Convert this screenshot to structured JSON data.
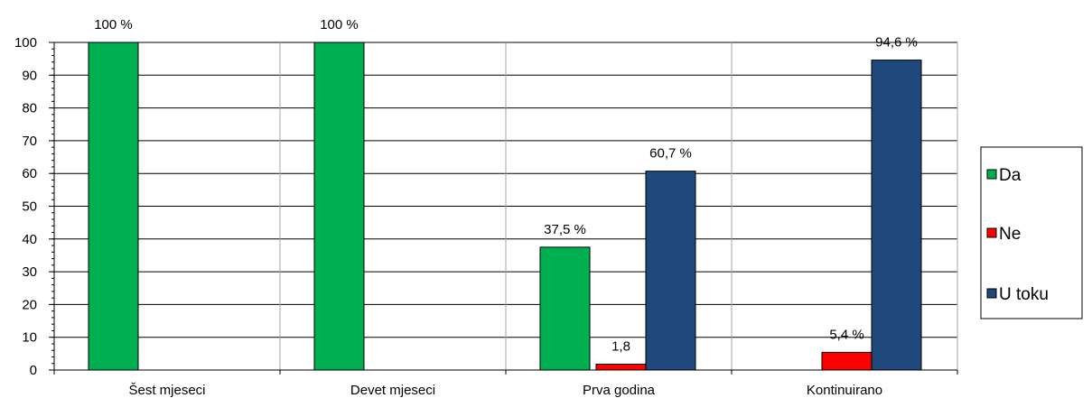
{
  "chart_data": {
    "type": "bar",
    "title": "",
    "xlabel": "",
    "ylabel": "",
    "ylim": [
      0,
      100
    ],
    "yticks": [
      0,
      10,
      20,
      30,
      40,
      50,
      60,
      70,
      80,
      90,
      100
    ],
    "grid": "horizontal and vertical",
    "legend_position": "right",
    "categories": [
      "Šest mjeseci",
      "Devet mjeseci",
      "Prva godina",
      "Kontinuirano"
    ],
    "series": [
      {
        "name": "Da",
        "color": "#00b050",
        "values": [
          100,
          100,
          37.5,
          null
        ],
        "labels": [
          "100 %",
          "100 %",
          "37,5 %",
          ""
        ]
      },
      {
        "name": "Ne",
        "color": "#ff0000",
        "values": [
          null,
          null,
          1.8,
          5.4
        ],
        "labels": [
          "",
          "",
          "1,8",
          "5,4 %"
        ]
      },
      {
        "name": "U toku",
        "color": "#1f497d",
        "values": [
          null,
          null,
          60.7,
          94.6
        ],
        "labels": [
          "",
          "",
          "60,7 %",
          "94,6 %"
        ]
      }
    ]
  }
}
